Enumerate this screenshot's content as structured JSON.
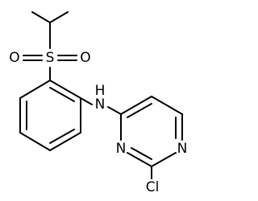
{
  "atoms": {
    "sulfur": "S",
    "oxygen_left": "O",
    "oxygen_right": "O",
    "amine_n": "N",
    "amine_h": "H",
    "ring_n_left": "N",
    "ring_n_right": "N",
    "chlorine": "Cl"
  }
}
